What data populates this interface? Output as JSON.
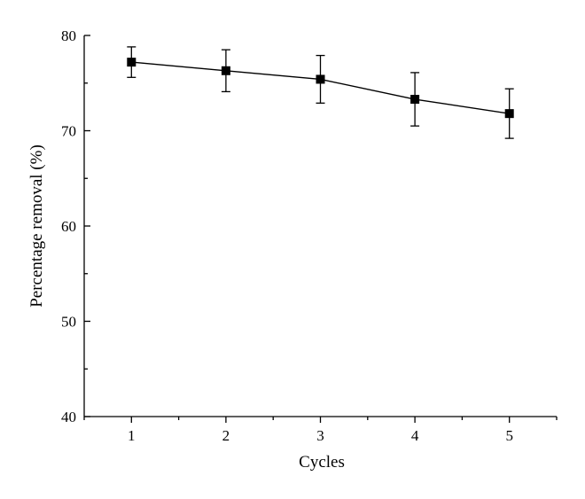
{
  "chart_data": {
    "type": "line",
    "xlabel": "Cycles",
    "ylabel": "Percentage removal (%)",
    "x": [
      1,
      2,
      3,
      4,
      5
    ],
    "xticks": [
      "1",
      "2",
      "3",
      "4",
      "5"
    ],
    "xlim": [
      0.5,
      5.5
    ],
    "ylim": [
      40,
      80
    ],
    "yticks": [
      "40",
      "50",
      "60",
      "70",
      "80"
    ],
    "grid": false,
    "series": [
      {
        "values": [
          77.2,
          76.3,
          75.4,
          73.3,
          71.8
        ],
        "errors": [
          1.6,
          2.2,
          2.5,
          2.8,
          2.6
        ],
        "marker": "square",
        "color": "#000000"
      }
    ]
  }
}
